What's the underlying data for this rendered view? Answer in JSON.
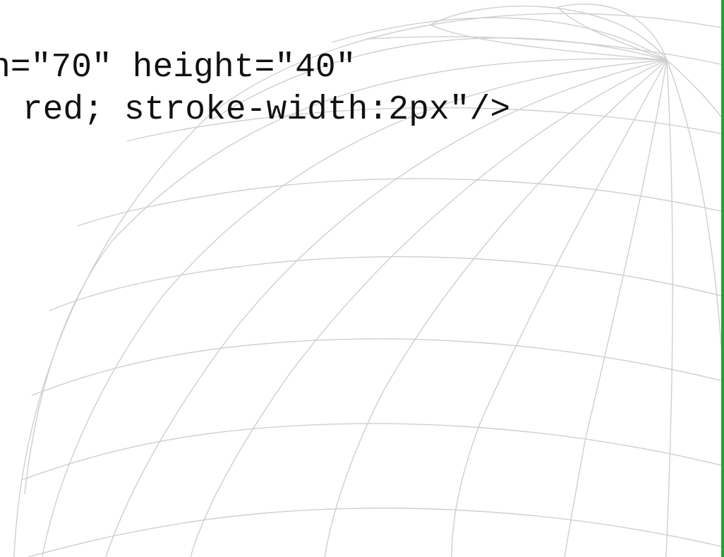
{
  "code_snippet": {
    "lines": [
      "n=\"70\" height=\"40\"",
      " red; stroke-width:2px\"/>"
    ]
  },
  "colors": {
    "background": "#ffffff",
    "text": "#111111",
    "globe_lines": "#cfcfcf",
    "edge_accent": "#2e9a3b"
  },
  "decoration": {
    "icon": "wireframe-globe-icon"
  }
}
